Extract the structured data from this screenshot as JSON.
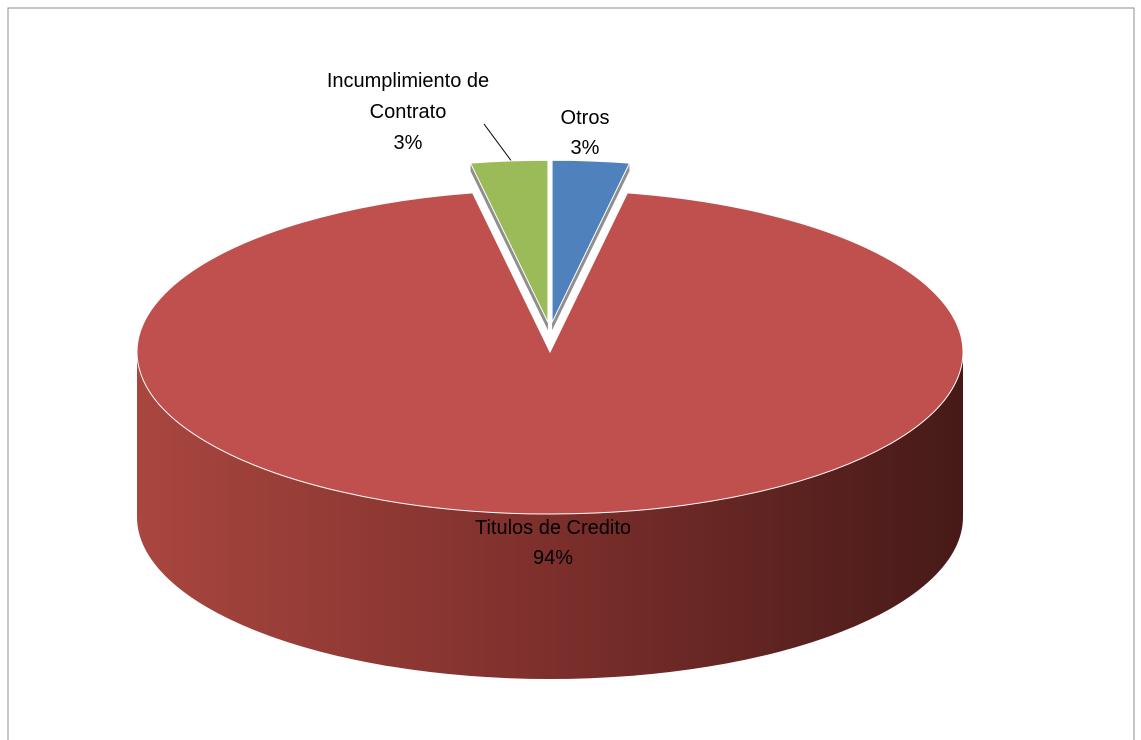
{
  "chart_data": {
    "type": "pie",
    "categories": [
      "Otros",
      "Titulos de Credito",
      "Incumplimiento de Contrato"
    ],
    "values": [
      3,
      94,
      3
    ],
    "value_labels": [
      "3%",
      "94%",
      "3%"
    ],
    "colors": [
      "#4f81bd",
      "#c0504d",
      "#9bbb59"
    ],
    "explode": [
      true,
      false,
      true
    ]
  }
}
